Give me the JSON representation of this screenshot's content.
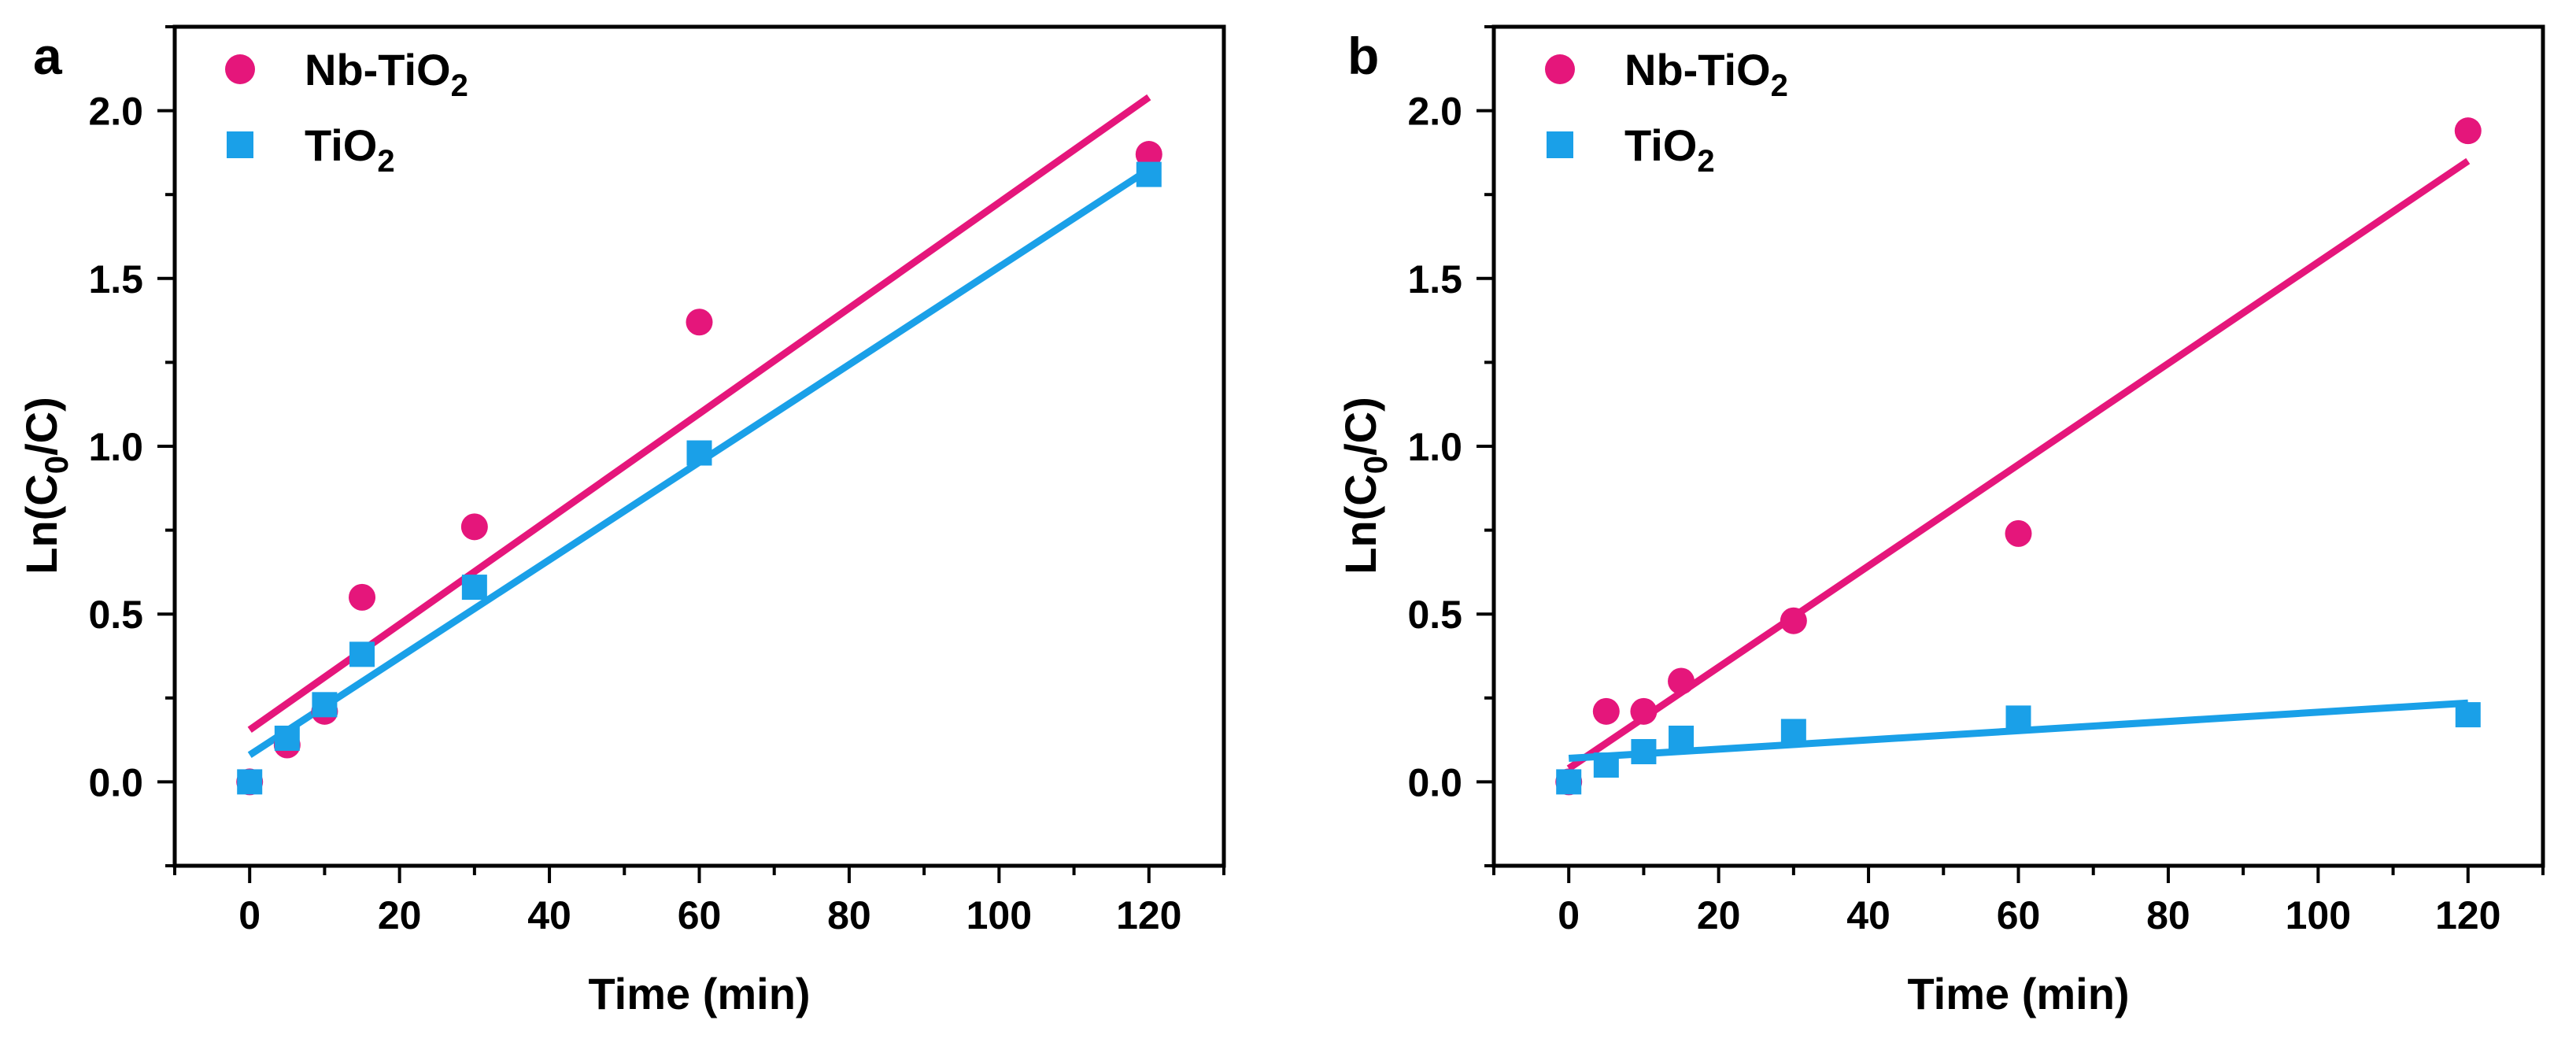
{
  "figure": {
    "panel_count": 2
  },
  "chart_data": [
    {
      "type": "scatter",
      "panel_label": "a",
      "xlabel": "Time (min)",
      "ylabel": {
        "prefix": "Ln(C",
        "sub": "0",
        "suffix": "/C)"
      },
      "xlim": [
        -10,
        130
      ],
      "ylim": [
        -0.25,
        2.25
      ],
      "xticks": [
        0,
        20,
        40,
        60,
        80,
        100,
        120
      ],
      "yticks": [
        0.0,
        0.5,
        1.0,
        1.5,
        2.0
      ],
      "grid": false,
      "legend_position": "top-left",
      "series": [
        {
          "name": "Nb-TiO2",
          "legend": {
            "base": "Nb-TiO",
            "sub": "2"
          },
          "marker": "circle",
          "color": "#E5167B",
          "x": [
            0,
            5,
            10,
            15,
            30,
            60,
            120
          ],
          "y": [
            0.0,
            0.11,
            0.21,
            0.55,
            0.76,
            1.37,
            1.87
          ],
          "fit": {
            "x": [
              0,
              120
            ],
            "y": [
              0.155,
              2.04
            ]
          }
        },
        {
          "name": "TiO2",
          "legend": {
            "base": "TiO",
            "sub": "2"
          },
          "marker": "square",
          "color": "#1AA0E8",
          "x": [
            0,
            5,
            10,
            15,
            30,
            60,
            120
          ],
          "y": [
            0.0,
            0.13,
            0.23,
            0.38,
            0.58,
            0.98,
            1.81
          ],
          "fit": {
            "x": [
              0,
              120
            ],
            "y": [
              0.08,
              1.825
            ]
          }
        }
      ]
    },
    {
      "type": "scatter",
      "panel_label": "b",
      "xlabel": "Time (min)",
      "ylabel": {
        "prefix": "Ln(C",
        "sub": "0",
        "suffix": "/C)"
      },
      "xlim": [
        -10,
        130
      ],
      "ylim": [
        -0.25,
        2.25
      ],
      "xticks": [
        0,
        20,
        40,
        60,
        80,
        100,
        120
      ],
      "yticks": [
        0.0,
        0.5,
        1.0,
        1.5,
        2.0
      ],
      "grid": false,
      "legend_position": "top-left",
      "series": [
        {
          "name": "Nb-TiO2",
          "legend": {
            "base": "Nb-TiO",
            "sub": "2"
          },
          "marker": "circle",
          "color": "#E5167B",
          "x": [
            0,
            5,
            10,
            15,
            30,
            60,
            120
          ],
          "y": [
            0.0,
            0.21,
            0.21,
            0.3,
            0.48,
            0.74,
            1.94
          ],
          "fit": {
            "x": [
              0,
              120
            ],
            "y": [
              0.04,
              1.85
            ]
          }
        },
        {
          "name": "TiO2",
          "legend": {
            "base": "TiO",
            "sub": "2"
          },
          "marker": "square",
          "color": "#1AA0E8",
          "x": [
            0,
            5,
            10,
            15,
            30,
            60,
            120
          ],
          "y": [
            0.0,
            0.05,
            0.09,
            0.13,
            0.15,
            0.19,
            0.2
          ],
          "fit": {
            "x": [
              0,
              120
            ],
            "y": [
              0.07,
              0.235
            ]
          }
        }
      ]
    }
  ]
}
